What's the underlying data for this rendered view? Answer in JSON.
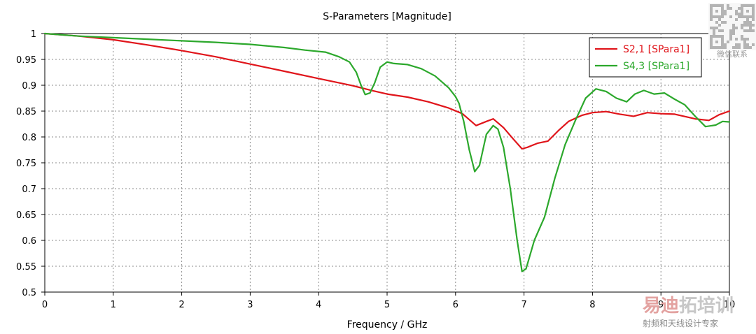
{
  "chart_data": {
    "type": "line",
    "title": "S-Parameters [Magnitude]",
    "xlabel": "Frequency / GHz",
    "ylabel": "",
    "xlim": [
      0,
      10
    ],
    "ylim": [
      0.5,
      1
    ],
    "xticks": [
      0,
      1,
      2,
      3,
      4,
      5,
      6,
      7,
      8,
      9,
      10
    ],
    "yticks": [
      0.5,
      0.55,
      0.6,
      0.65,
      0.7,
      0.75,
      0.8,
      0.85,
      0.9,
      0.95,
      1
    ],
    "ytick_labels": [
      "0.5",
      "0.55",
      "0.6",
      "0.65",
      "0.7",
      "0.75",
      "0.8",
      "0.85",
      "0.9",
      "0.95",
      "1"
    ],
    "grid": true,
    "legend_position": "top-right",
    "series": [
      {
        "name": "S2,1 [SPara1]",
        "color": "#e0151b",
        "points": [
          [
            0,
            1.0
          ],
          [
            0.5,
            0.995
          ],
          [
            1,
            0.988
          ],
          [
            1.5,
            0.978
          ],
          [
            2,
            0.967
          ],
          [
            2.5,
            0.955
          ],
          [
            3,
            0.941
          ],
          [
            3.5,
            0.927
          ],
          [
            4,
            0.913
          ],
          [
            4.5,
            0.899
          ],
          [
            4.8,
            0.889
          ],
          [
            5,
            0.883
          ],
          [
            5.3,
            0.877
          ],
          [
            5.6,
            0.868
          ],
          [
            5.9,
            0.856
          ],
          [
            6.1,
            0.845
          ],
          [
            6.3,
            0.822
          ],
          [
            6.45,
            0.83
          ],
          [
            6.55,
            0.835
          ],
          [
            6.7,
            0.818
          ],
          [
            6.85,
            0.795
          ],
          [
            6.97,
            0.777
          ],
          [
            7.05,
            0.78
          ],
          [
            7.2,
            0.788
          ],
          [
            7.35,
            0.792
          ],
          [
            7.5,
            0.812
          ],
          [
            7.65,
            0.83
          ],
          [
            7.85,
            0.842
          ],
          [
            8,
            0.847
          ],
          [
            8.2,
            0.849
          ],
          [
            8.4,
            0.844
          ],
          [
            8.6,
            0.84
          ],
          [
            8.8,
            0.847
          ],
          [
            9.0,
            0.845
          ],
          [
            9.2,
            0.844
          ],
          [
            9.5,
            0.835
          ],
          [
            9.7,
            0.832
          ],
          [
            9.85,
            0.843
          ],
          [
            10,
            0.85
          ]
        ]
      },
      {
        "name": "S4,3 [SPara1]",
        "color": "#2ca82c",
        "points": [
          [
            0,
            1.0
          ],
          [
            0.5,
            0.995
          ],
          [
            1,
            0.992
          ],
          [
            1.5,
            0.989
          ],
          [
            2,
            0.986
          ],
          [
            2.5,
            0.983
          ],
          [
            3,
            0.979
          ],
          [
            3.5,
            0.973
          ],
          [
            3.8,
            0.968
          ],
          [
            4.1,
            0.964
          ],
          [
            4.3,
            0.955
          ],
          [
            4.45,
            0.945
          ],
          [
            4.55,
            0.925
          ],
          [
            4.62,
            0.9
          ],
          [
            4.68,
            0.882
          ],
          [
            4.75,
            0.885
          ],
          [
            4.82,
            0.905
          ],
          [
            4.9,
            0.935
          ],
          [
            5.0,
            0.945
          ],
          [
            5.1,
            0.942
          ],
          [
            5.3,
            0.94
          ],
          [
            5.5,
            0.932
          ],
          [
            5.7,
            0.918
          ],
          [
            5.9,
            0.895
          ],
          [
            6.0,
            0.878
          ],
          [
            6.05,
            0.865
          ],
          [
            6.12,
            0.83
          ],
          [
            6.2,
            0.775
          ],
          [
            6.28,
            0.733
          ],
          [
            6.35,
            0.745
          ],
          [
            6.45,
            0.805
          ],
          [
            6.55,
            0.822
          ],
          [
            6.62,
            0.815
          ],
          [
            6.7,
            0.78
          ],
          [
            6.8,
            0.7
          ],
          [
            6.9,
            0.6
          ],
          [
            6.97,
            0.54
          ],
          [
            7.03,
            0.545
          ],
          [
            7.15,
            0.6
          ],
          [
            7.3,
            0.645
          ],
          [
            7.45,
            0.72
          ],
          [
            7.6,
            0.785
          ],
          [
            7.75,
            0.832
          ],
          [
            7.9,
            0.875
          ],
          [
            8.05,
            0.893
          ],
          [
            8.2,
            0.888
          ],
          [
            8.35,
            0.875
          ],
          [
            8.5,
            0.868
          ],
          [
            8.62,
            0.883
          ],
          [
            8.75,
            0.89
          ],
          [
            8.9,
            0.883
          ],
          [
            9.05,
            0.885
          ],
          [
            9.2,
            0.873
          ],
          [
            9.35,
            0.862
          ],
          [
            9.5,
            0.84
          ],
          [
            9.65,
            0.82
          ],
          [
            9.8,
            0.823
          ],
          [
            9.9,
            0.83
          ],
          [
            10,
            0.829
          ]
        ]
      }
    ]
  },
  "watermark": {
    "qr_caption": "微信联系",
    "brand": "易迪拓培训",
    "brand_sub": "射频和天线设计专家"
  }
}
